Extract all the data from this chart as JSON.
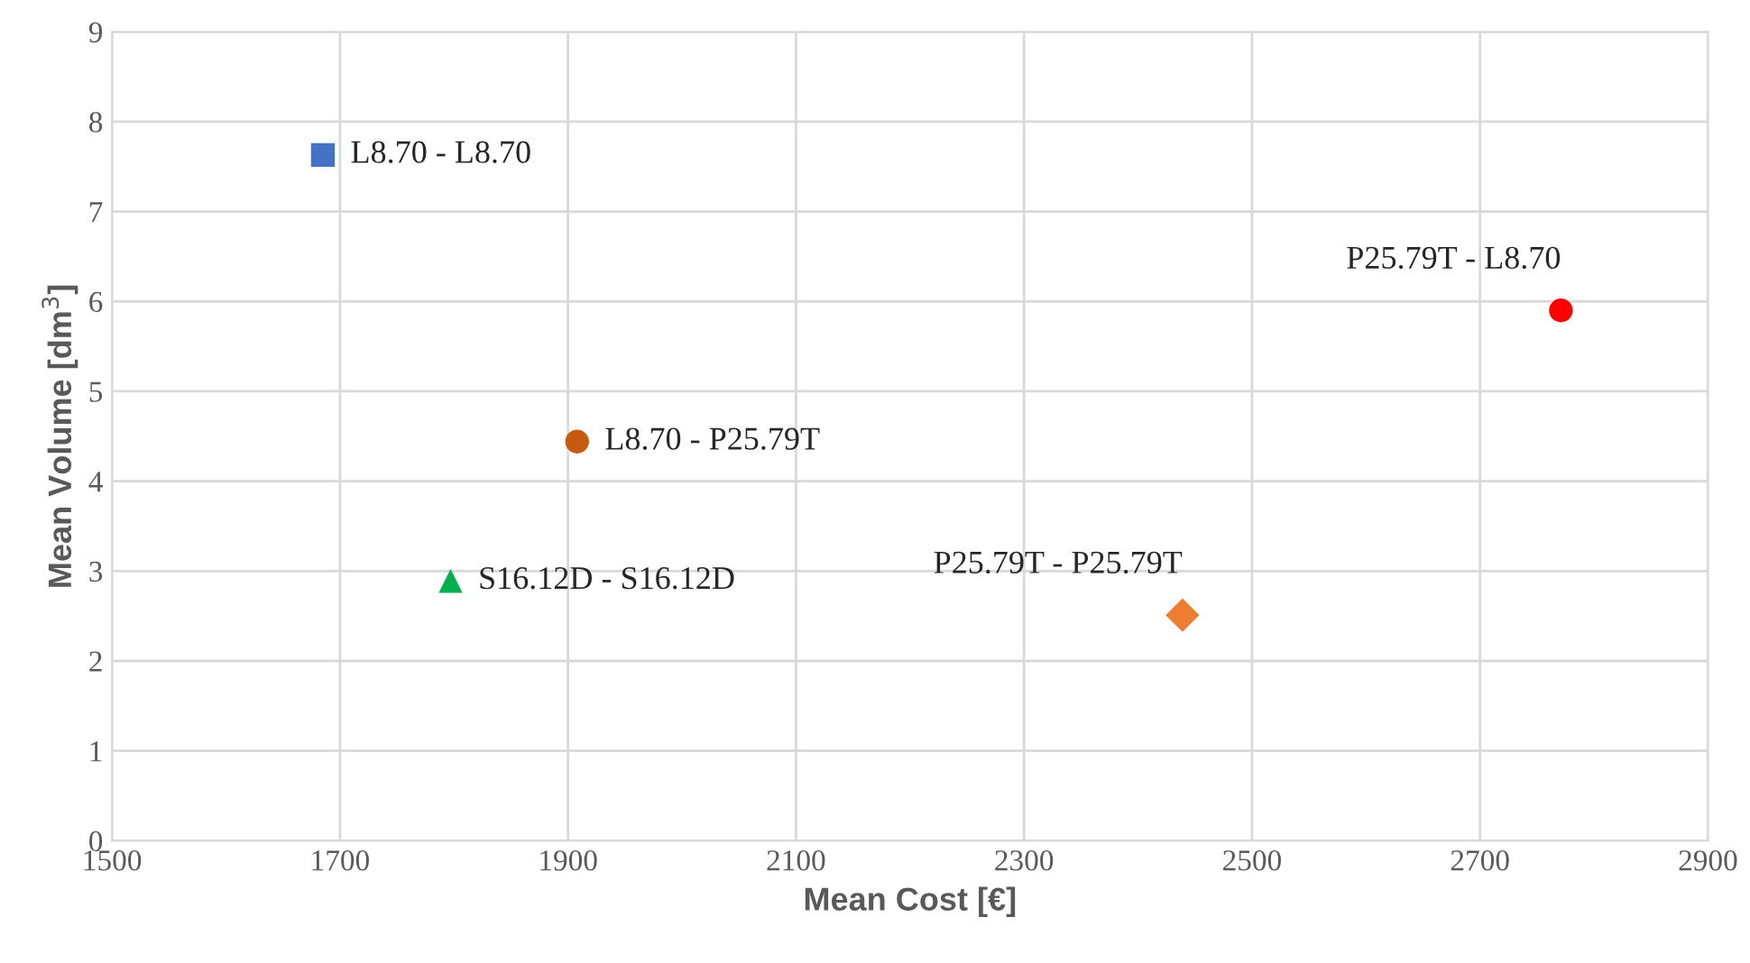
{
  "chart_data": {
    "type": "scatter",
    "xlabel": "Mean Cost [€]",
    "ylabel": "Mean Volume [dm$^{3}$]",
    "xlim": [
      1500,
      2900
    ],
    "xticks": [
      1500,
      1700,
      1900,
      2100,
      2300,
      2500,
      2700,
      2900
    ],
    "ylim": [
      0,
      9
    ],
    "yticks": [
      0,
      1,
      2,
      3,
      4,
      5,
      6,
      7,
      8,
      9
    ],
    "grid": true,
    "series": [
      {
        "name": "L8.70 - L8.70",
        "color": "#4472c4",
        "marker": "square",
        "x": [
          1685
        ],
        "values": [
          7.63
        ]
      },
      {
        "name": "L8.70 - P25.79T",
        "color": "#c55a11",
        "marker": "circle",
        "x": [
          1908
        ],
        "values": [
          4.44
        ]
      },
      {
        "name": "S16.12D - S16.12D",
        "color": "#00b050",
        "marker": "triangle",
        "x": [
          1797
        ],
        "values": [
          2.89
        ]
      },
      {
        "name": "P25.79T - P25.79T",
        "color": "#ed7d31",
        "marker": "diamond",
        "x": [
          2439
        ],
        "values": [
          2.51
        ]
      },
      {
        "name": "P25.79T - L8.70",
        "color": "#ff0000",
        "marker": "circle",
        "x": [
          2771
        ],
        "values": [
          5.9
        ]
      }
    ]
  }
}
